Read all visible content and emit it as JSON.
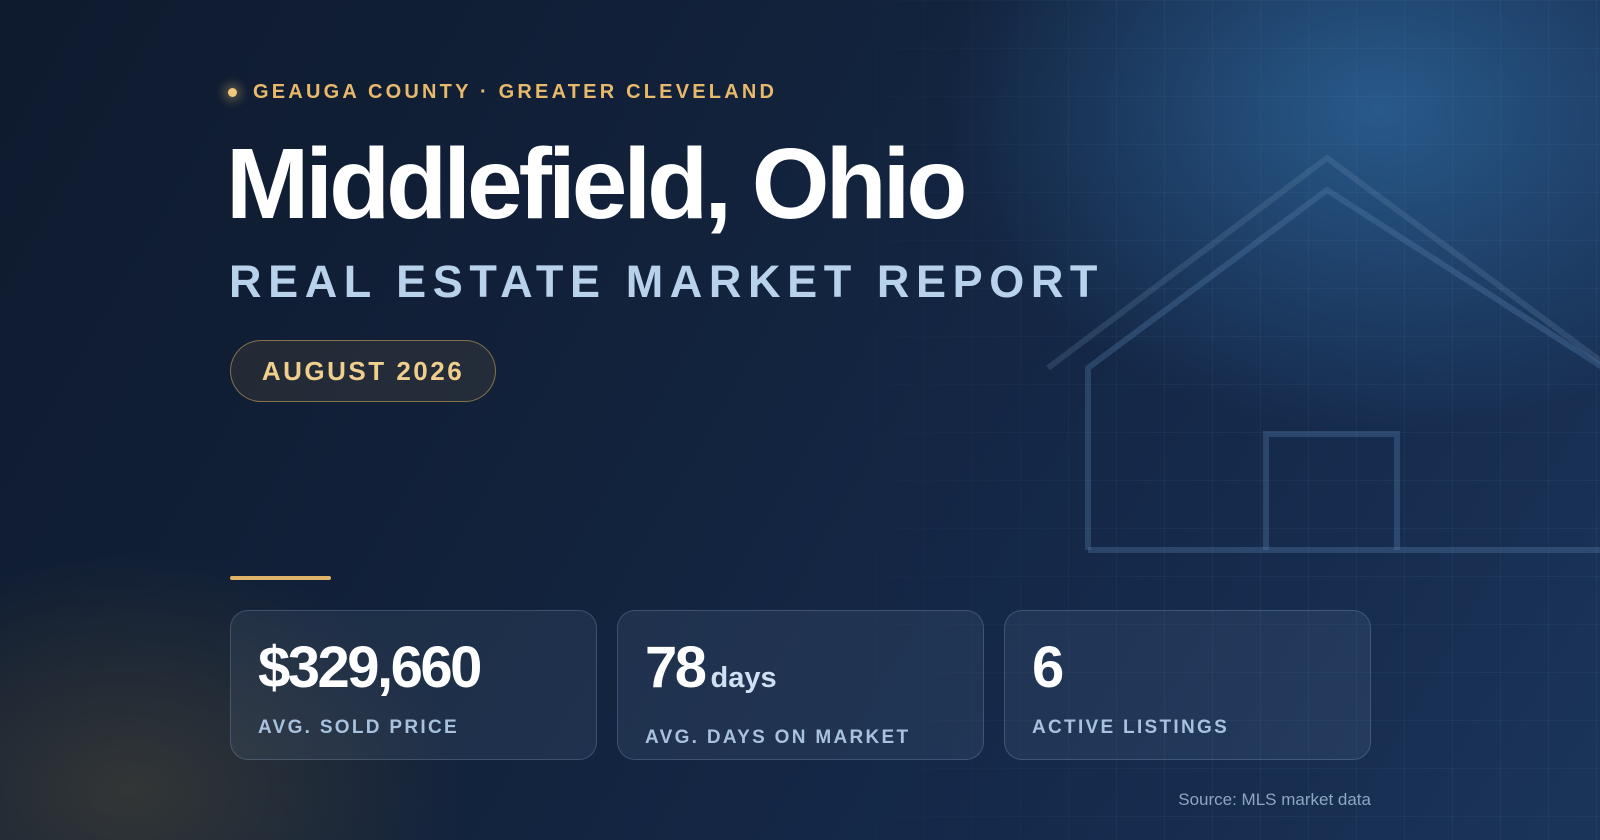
{
  "eyebrow": "GEAUGA COUNTY · GREATER CLEVELAND",
  "title": "Middlefield, Ohio",
  "subtitle": "REAL ESTATE MARKET REPORT",
  "date_pill": "AUGUST 2026",
  "stats": [
    {
      "value": "$329,660",
      "unit": "",
      "label": "AVG. SOLD PRICE"
    },
    {
      "value": "78",
      "unit": "days",
      "label": "AVG. DAYS ON MARKET"
    },
    {
      "value": "6",
      "unit": "",
      "label": "ACTIVE LISTINGS"
    }
  ],
  "source": "Source: MLS market data",
  "icons": {
    "eyebrow_dot": "dot-icon",
    "background_house": "house-outline-icon"
  },
  "colors": {
    "accent_gold": "#e8b96a",
    "subtitle_blue": "#b9d2ec",
    "background_dark": "#0e1a2e",
    "background_light": "#1a3459"
  }
}
